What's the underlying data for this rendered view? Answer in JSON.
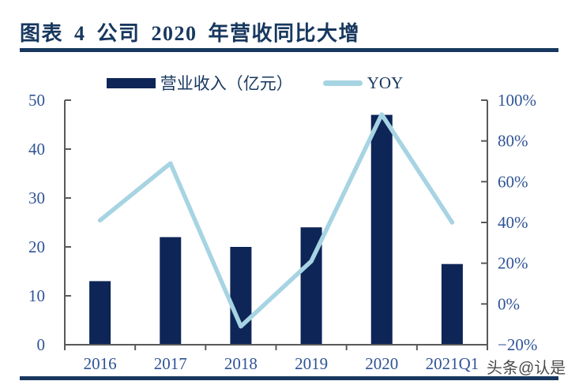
{
  "page": {
    "title": "图表 4 公司 2020 年营收同比大增",
    "watermark": "头条@认是"
  },
  "legend": [
    {
      "label": "营业收入（亿元）",
      "marker": "bar-swatch"
    },
    {
      "label": "YOY",
      "marker": "line-swatch"
    }
  ],
  "colors": {
    "bar": "#0E2557",
    "line": "#A7D4E3",
    "title": "#17375E",
    "rule": "#17375E",
    "tick_label": "#2F5496",
    "axis": "#595959",
    "watermark": "#4A4A4A"
  },
  "chart_data": {
    "type": "bar",
    "title": "图表 4 公司 2020 年营收同比大增",
    "categories": [
      "2016",
      "2017",
      "2018",
      "2019",
      "2020",
      "2021Q1"
    ],
    "series": [
      {
        "name": "营业收入（亿元）",
        "type": "bar",
        "axis": "left",
        "values": [
          13,
          22,
          20,
          24,
          47,
          16.5
        ]
      },
      {
        "name": "YOY",
        "type": "line",
        "axis": "right",
        "values": [
          41,
          69,
          -11,
          21,
          93,
          40
        ]
      }
    ],
    "left_axis": {
      "min": 0,
      "max": 50,
      "step": 10,
      "labels": [
        "0",
        "10",
        "20",
        "30",
        "40",
        "50"
      ]
    },
    "right_axis": {
      "min": -20,
      "max": 100,
      "step": 20,
      "labels": [
        "−20%",
        "0%",
        "20%",
        "40%",
        "60%",
        "80%",
        "100%"
      ]
    },
    "grid": false,
    "legend_position": "top",
    "xlabel": "",
    "ylabel_left": "营业收入（亿元）",
    "ylabel_right": "YOY"
  }
}
